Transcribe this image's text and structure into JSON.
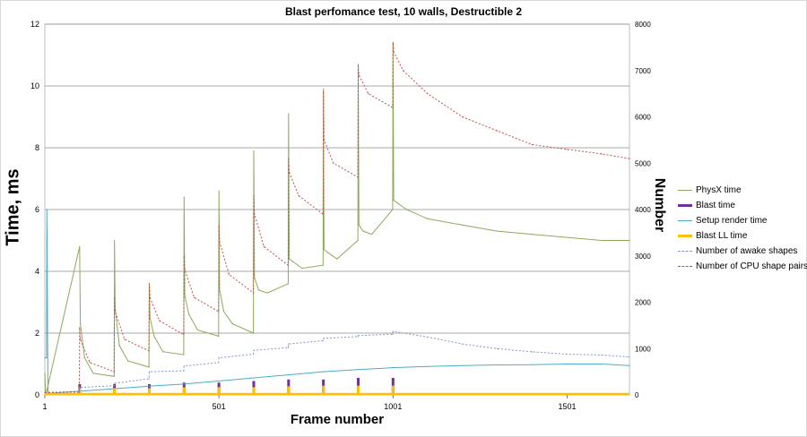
{
  "chart_data": {
    "type": "line",
    "title": "Blast perfomance test, 10 walls, Destructible 2",
    "xlabel": "Frame number",
    "ylabel": "Time, ms",
    "y2label": "Number",
    "xlim": [
      1,
      1680
    ],
    "ylim": [
      0,
      12
    ],
    "y2lim": [
      0,
      8000
    ],
    "xticks": [
      "1",
      "501",
      "1001",
      "1501"
    ],
    "xtick_values": [
      1,
      501,
      1001,
      1501
    ],
    "yticks": [
      "0",
      "2",
      "4",
      "6",
      "8",
      "10",
      "12"
    ],
    "y2ticks": [
      "0",
      "1000",
      "2000",
      "3000",
      "4000",
      "5000",
      "6000",
      "7000",
      "8000"
    ],
    "grid": true,
    "legend_position": "right",
    "series": [
      {
        "name": "PhysX time",
        "axis": "left",
        "color": "#8caa5a",
        "style": "solid",
        "x": [
          1,
          3,
          5,
          101,
          103,
          115,
          140,
          200,
          201,
          203,
          215,
          240,
          300,
          301,
          303,
          315,
          340,
          400,
          401,
          403,
          415,
          440,
          500,
          501,
          503,
          515,
          540,
          600,
          601,
          603,
          615,
          640,
          700,
          701,
          703,
          715,
          740,
          800,
          801,
          803,
          815,
          840,
          900,
          901,
          903,
          915,
          940,
          1000,
          1001,
          1003,
          1015,
          1040,
          1100,
          1200,
          1300,
          1400,
          1500,
          1600,
          1680
        ],
        "y": [
          0.7,
          0.1,
          0.06,
          4.8,
          2.3,
          1.2,
          0.7,
          0.6,
          5.0,
          2.8,
          1.6,
          1.1,
          0.9,
          3.6,
          2.5,
          1.9,
          1.4,
          1.3,
          6.4,
          3.2,
          2.6,
          2.1,
          1.9,
          6.6,
          3.4,
          2.7,
          2.3,
          2.0,
          7.9,
          3.8,
          3.4,
          3.3,
          3.6,
          9.1,
          4.4,
          4.3,
          4.1,
          4.2,
          9.9,
          4.7,
          4.6,
          4.4,
          5.0,
          10.7,
          5.5,
          5.3,
          5.2,
          6.0,
          11.4,
          6.3,
          6.2,
          6.0,
          5.7,
          5.5,
          5.3,
          5.2,
          5.1,
          5.0,
          5.0
        ]
      },
      {
        "name": "Blast time",
        "axis": "left",
        "color": "#7030a0",
        "style": "spikes",
        "x": [
          101,
          201,
          301,
          401,
          501,
          601,
          701,
          801,
          901,
          1001
        ],
        "y": [
          0.35,
          0.35,
          0.35,
          0.4,
          0.4,
          0.45,
          0.5,
          0.5,
          0.55,
          0.55
        ]
      },
      {
        "name": "Setup render time",
        "axis": "left",
        "color": "#4bacc6",
        "style": "solid",
        "x": [
          1,
          6,
          7,
          10,
          100,
          200,
          300,
          400,
          500,
          600,
          700,
          800,
          900,
          1000,
          1100,
          1200,
          1300,
          1400,
          1500,
          1600,
          1680
        ],
        "y": [
          1.2,
          1.2,
          6.0,
          0.05,
          0.12,
          0.2,
          0.28,
          0.35,
          0.45,
          0.55,
          0.65,
          0.75,
          0.82,
          0.88,
          0.92,
          0.95,
          0.97,
          0.98,
          1.0,
          1.0,
          0.95
        ]
      },
      {
        "name": "Blast LL time",
        "axis": "left",
        "color": "#ffc000",
        "style": "thick",
        "x": [
          101,
          201,
          301,
          401,
          501,
          601,
          701,
          801,
          901,
          1001
        ],
        "y": [
          0.22,
          0.22,
          0.22,
          0.25,
          0.25,
          0.25,
          0.28,
          0.3,
          0.3,
          0.3
        ]
      },
      {
        "name": "Number of awake shapes",
        "axis": "right",
        "color": "#8496c8",
        "style": "dashed",
        "x": [
          1,
          100,
          101,
          200,
          201,
          300,
          301,
          400,
          401,
          500,
          501,
          600,
          601,
          700,
          701,
          800,
          801,
          900,
          901,
          1000,
          1001,
          1100,
          1200,
          1300,
          1400,
          1500,
          1600,
          1680
        ],
        "y": [
          50,
          80,
          160,
          200,
          250,
          350,
          500,
          520,
          620,
          700,
          800,
          880,
          960,
          1020,
          1100,
          1170,
          1220,
          1260,
          1280,
          1310,
          1370,
          1250,
          1100,
          1000,
          930,
          880,
          860,
          820
        ]
      },
      {
        "name": "Number of CPU shape pairs",
        "axis": "right",
        "color": "#c0504d",
        "style": "dashed",
        "x": [
          1,
          100,
          101,
          103,
          130,
          200,
          201,
          203,
          230,
          300,
          301,
          303,
          330,
          400,
          401,
          403,
          430,
          500,
          501,
          503,
          530,
          600,
          601,
          603,
          630,
          700,
          701,
          703,
          730,
          800,
          801,
          803,
          830,
          900,
          901,
          903,
          930,
          1000,
          1001,
          1003,
          1030,
          1100,
          1200,
          1300,
          1400,
          1500,
          1600,
          1680
        ],
        "y": [
          50,
          60,
          1450,
          1200,
          700,
          500,
          2100,
          1800,
          1200,
          950,
          2400,
          2100,
          1600,
          1300,
          3000,
          2700,
          2100,
          1800,
          3650,
          3300,
          2600,
          2200,
          4300,
          3900,
          3200,
          2800,
          5100,
          4800,
          4300,
          3900,
          6550,
          5500,
          5000,
          4700,
          7100,
          6900,
          6500,
          6200,
          7600,
          7400,
          7000,
          6500,
          6000,
          5700,
          5400,
          5300,
          5200,
          5100
        ]
      }
    ]
  }
}
